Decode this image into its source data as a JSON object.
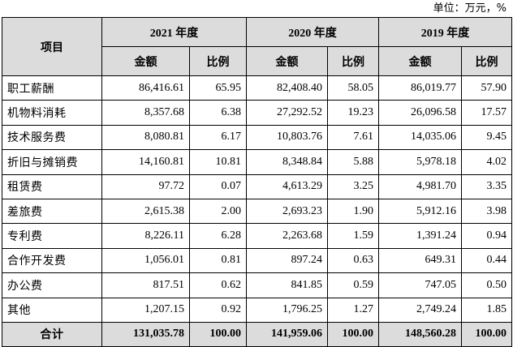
{
  "unit_label": "单位：万元，%",
  "header": {
    "item": "项目",
    "years": [
      {
        "year": "2021",
        "suffix": "年度"
      },
      {
        "year": "2020",
        "suffix": "年度"
      },
      {
        "year": "2019",
        "suffix": "年度"
      }
    ],
    "amount": "金额",
    "ratio": "比例"
  },
  "rows": [
    {
      "label": "职工薪酬",
      "v": [
        "86,416.61",
        "65.95",
        "82,408.40",
        "58.05",
        "86,019.77",
        "57.90"
      ]
    },
    {
      "label": "机物料消耗",
      "v": [
        "8,357.68",
        "6.38",
        "27,292.52",
        "19.23",
        "26,096.58",
        "17.57"
      ]
    },
    {
      "label": "技术服务费",
      "v": [
        "8,080.81",
        "6.17",
        "10,803.76",
        "7.61",
        "14,035.06",
        "9.45"
      ]
    },
    {
      "label": "折旧与摊销费",
      "v": [
        "14,160.81",
        "10.81",
        "8,348.84",
        "5.88",
        "5,978.18",
        "4.02"
      ]
    },
    {
      "label": "租赁费",
      "v": [
        "97.72",
        "0.07",
        "4,613.29",
        "3.25",
        "4,981.70",
        "3.35"
      ]
    },
    {
      "label": "差旅费",
      "v": [
        "2,615.38",
        "2.00",
        "2,693.23",
        "1.90",
        "5,912.16",
        "3.98"
      ]
    },
    {
      "label": "专利费",
      "v": [
        "8,226.11",
        "6.28",
        "2,263.68",
        "1.59",
        "1,391.24",
        "0.94"
      ]
    },
    {
      "label": "合作开发费",
      "v": [
        "1,056.01",
        "0.81",
        "897.24",
        "0.63",
        "649.31",
        "0.44"
      ]
    },
    {
      "label": "办公费",
      "v": [
        "817.51",
        "0.62",
        "841.85",
        "0.59",
        "747.05",
        "0.50"
      ]
    },
    {
      "label": "其他",
      "v": [
        "1,207.15",
        "0.92",
        "1,796.25",
        "1.27",
        "2,749.24",
        "1.85"
      ]
    }
  ],
  "total": {
    "label": "合计",
    "v": [
      "131,035.78",
      "100.00",
      "141,959.06",
      "100.00",
      "148,560.28",
      "100.00"
    ]
  }
}
